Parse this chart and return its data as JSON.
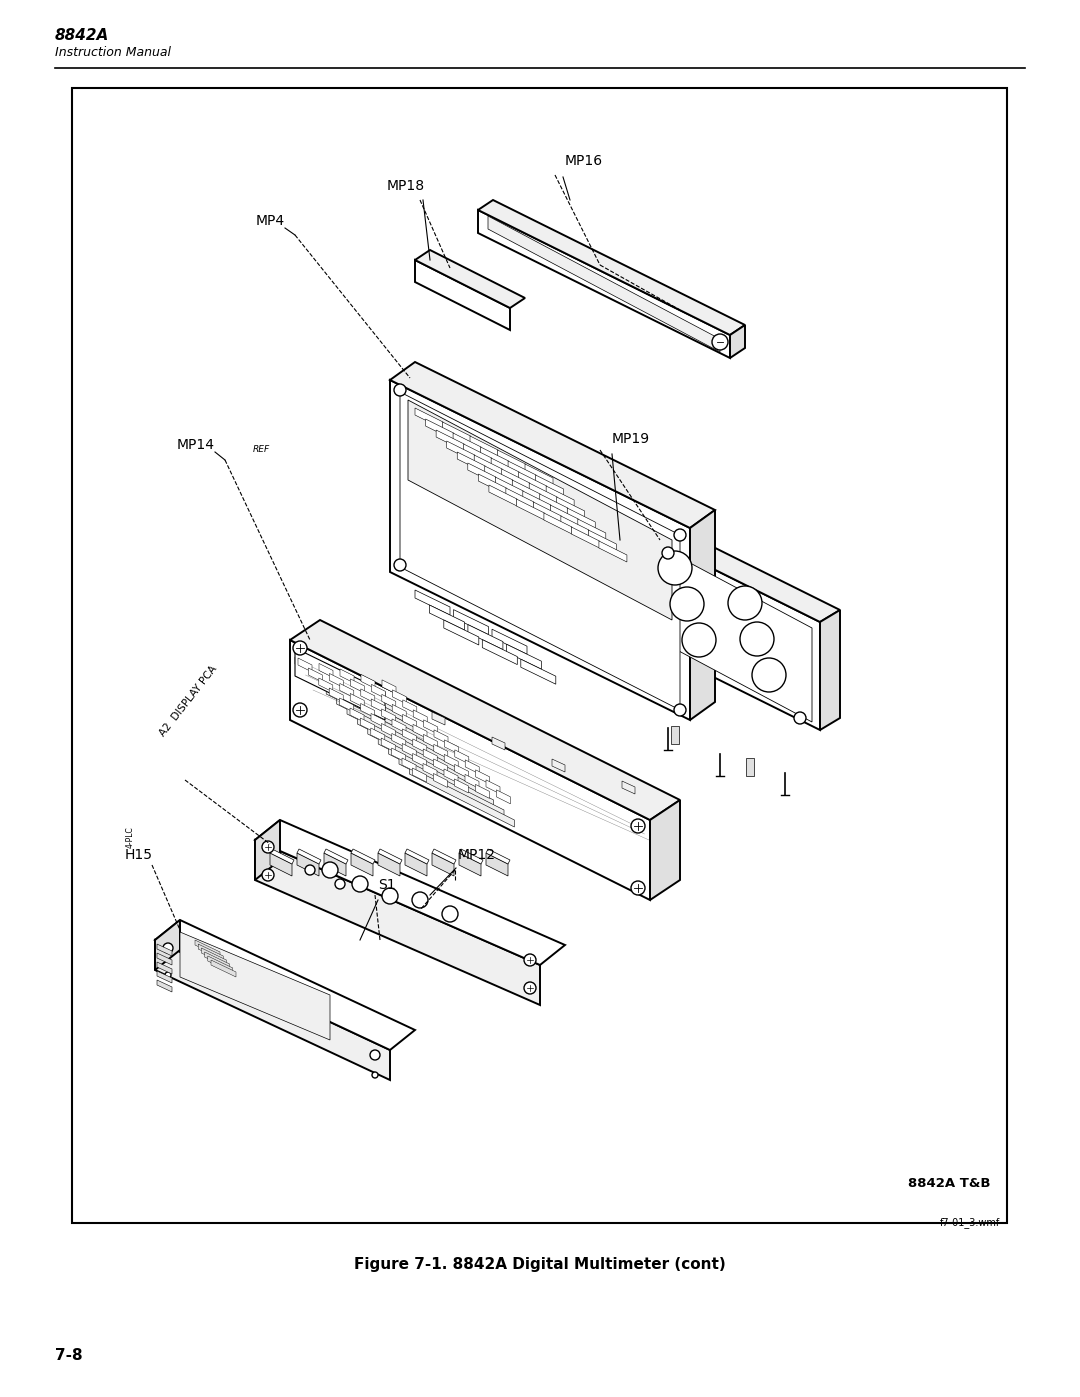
{
  "title_bold": "8842A",
  "title_sub": "Instruction Manual",
  "figure_caption": "Figure 7-1. 8842A Digital Multimeter (cont)",
  "file_ref": "f7-01_3.wmf",
  "page_num": "7-8",
  "box_stamp": "8842A T&B",
  "bg_color": "#ffffff",
  "fc_white": "#ffffff",
  "fc_light": "#f0f0f0",
  "fc_med": "#e0e0e0",
  "fc_dark": "#c8c8c8",
  "ec": "#000000",
  "lw_main": 1.0,
  "lw_thin": 0.5,
  "lw_thick": 1.4
}
